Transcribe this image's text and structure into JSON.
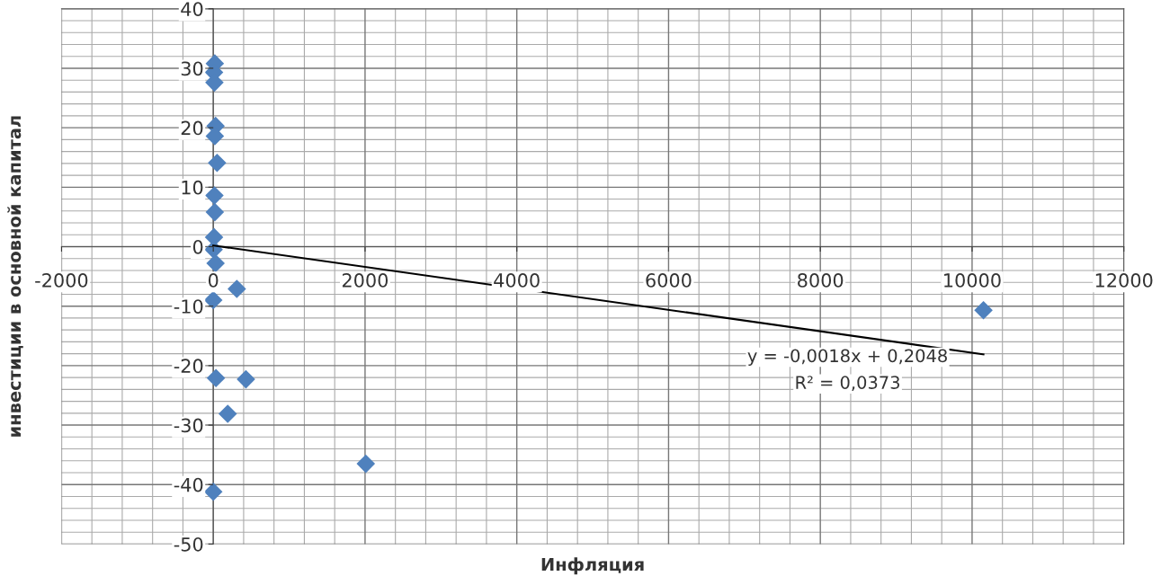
{
  "chart_data": {
    "type": "scatter",
    "xlabel": "Инфляция",
    "ylabel": "инвестиции в основной капитал",
    "xlim": [
      -2000,
      12000
    ],
    "xticks": [
      -2000,
      0,
      2000,
      4000,
      6000,
      8000,
      10000,
      12000
    ],
    "ylim": [
      -50,
      40
    ],
    "yticks": [
      -50,
      -40,
      -30,
      -20,
      -10,
      0,
      10,
      20,
      30,
      40
    ],
    "grid": true,
    "marker": "diamond",
    "legend": false,
    "series": [
      {
        "color": "#4f81bd",
        "x": [
          20,
          10,
          15,
          30,
          20,
          50,
          15,
          20,
          10,
          5,
          30,
          310,
          0,
          35,
          430,
          190,
          2010,
          0,
          10150
        ],
        "values": [
          30.8,
          29.3,
          27.6,
          20.3,
          18.6,
          14.1,
          8.6,
          5.8,
          1.6,
          -0.5,
          -2.8,
          -7.1,
          -9.0,
          -22.1,
          -22.3,
          -28.1,
          -36.5,
          -41.2,
          -10.7
        ]
      },
      {
        "type": "line",
        "color": "#000000",
        "marker": "none",
        "x": [
          0,
          10150
        ],
        "values": [
          0.2,
          -18.1
        ]
      }
    ],
    "annotations": [
      "y = -0,0018x + 0,2048",
      "R² = 0,0373"
    ]
  }
}
